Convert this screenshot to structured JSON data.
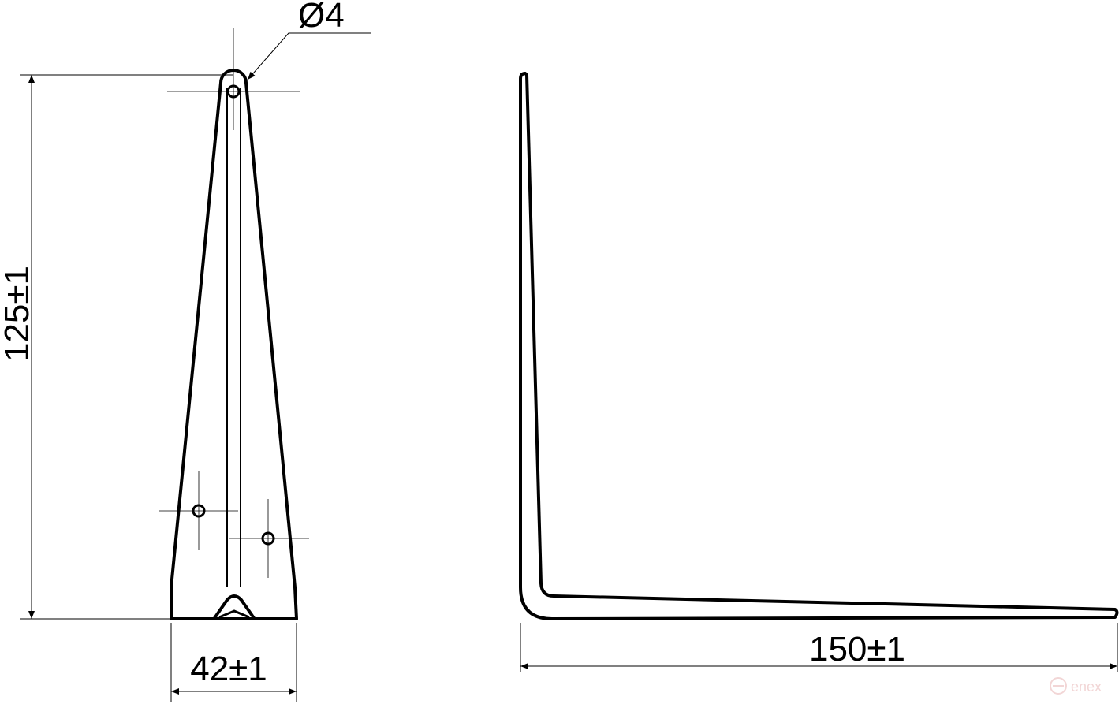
{
  "drawing": {
    "hole_diameter_label": "Ø4",
    "height_label": "125±1",
    "width_label": "42±1",
    "length_label": "150±1",
    "watermark": "enex"
  },
  "colors": {
    "line": "#000000",
    "watermark": "#f2d6d6"
  }
}
